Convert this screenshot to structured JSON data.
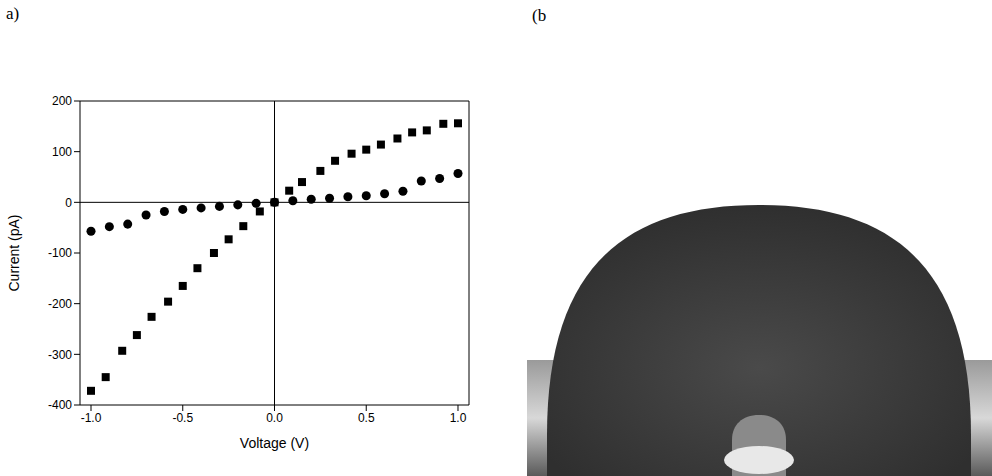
{
  "panel_labels": [
    "a)",
    "(b"
  ],
  "chart_data": {
    "type": "scatter",
    "x_label": "Voltage (V)",
    "y_label": "Current (pA)",
    "xlim": [
      -1.06,
      1.06
    ],
    "xticks": [
      {
        "value": -1.0,
        "label": "-1.0"
      },
      {
        "value": -0.5,
        "label": "-0.5"
      },
      {
        "value": 0,
        "label": "0.0"
      },
      {
        "value": 0.5,
        "label": "0.5"
      },
      {
        "value": 1.0,
        "label": "1.0"
      }
    ],
    "ylim": [
      -400,
      200
    ],
    "yticks": [
      -400,
      -300,
      -200,
      -100,
      0,
      100,
      200
    ],
    "grid": false,
    "series": [
      {
        "color": "#000000",
        "marker": "square",
        "x": [
          -1.0,
          -0.92,
          -0.83,
          -0.75,
          -0.67,
          -0.58,
          -0.5,
          -0.42,
          -0.33,
          -0.25,
          -0.17,
          -0.08,
          0,
          0.08,
          0.15,
          0.25,
          0.33,
          0.42,
          0.5,
          0.58,
          0.67,
          0.75,
          0.83,
          0.92,
          1.0
        ],
        "values": [
          -372,
          -345,
          -293,
          -262,
          -226,
          -196,
          -165,
          -130,
          -100,
          -73,
          -47,
          -18,
          0,
          23,
          40,
          62,
          82,
          96,
          104,
          114,
          126,
          138,
          142,
          155,
          156
        ]
      },
      {
        "color": "#000000",
        "marker": "circle",
        "x": [
          -1.0,
          -0.9,
          -0.8,
          -0.7,
          -0.6,
          -0.5,
          -0.4,
          -0.3,
          -0.2,
          -0.1,
          0,
          0.1,
          0.2,
          0.3,
          0.4,
          0.5,
          0.6,
          0.7,
          0.8,
          0.9,
          1.0
        ],
        "values": [
          -57,
          -48,
          -43,
          -25,
          -18,
          -14,
          -11,
          -8,
          -5,
          -2,
          0,
          3,
          6,
          8,
          11,
          13,
          17,
          22,
          42,
          47,
          57
        ]
      }
    ]
  }
}
